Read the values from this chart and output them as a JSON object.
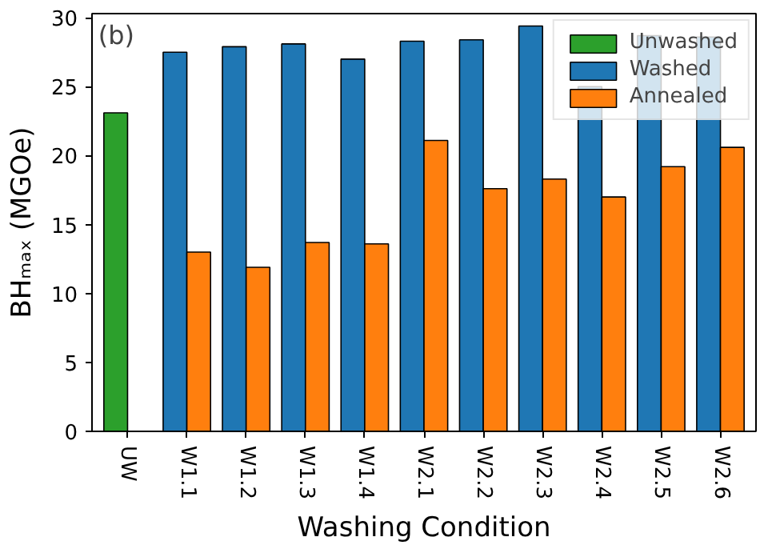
{
  "chart_data": {
    "type": "bar",
    "xlabel": "Washing Condition",
    "ylabel": "BHₘₐₓ (MGOe)",
    "categories": [
      "UW",
      "W1.1",
      "W1.2",
      "W1.3",
      "W1.4",
      "W2.1",
      "W2.2",
      "W2.3",
      "W2.4",
      "W2.5",
      "W2.6"
    ],
    "series": [
      {
        "name": "Unwashed",
        "color": "#2ca02c",
        "values": [
          23.1,
          null,
          null,
          null,
          null,
          null,
          null,
          null,
          null,
          null,
          null
        ]
      },
      {
        "name": "Washed",
        "color": "#1f77b4",
        "values": [
          null,
          27.5,
          27.9,
          28.1,
          27.0,
          28.3,
          28.4,
          29.4,
          25.0,
          28.7,
          28.6
        ]
      },
      {
        "name": "Annealed",
        "color": "#ff7f0e",
        "values": [
          null,
          13.0,
          11.9,
          13.7,
          13.6,
          21.1,
          17.6,
          18.3,
          17.0,
          19.2,
          20.6
        ]
      }
    ],
    "ylim": [
      0,
      30.3
    ],
    "yticks": [
      0,
      5,
      10,
      15,
      20,
      25,
      30
    ],
    "grid": false,
    "legend": "top right",
    "annotations": [
      "(b)"
    ]
  }
}
